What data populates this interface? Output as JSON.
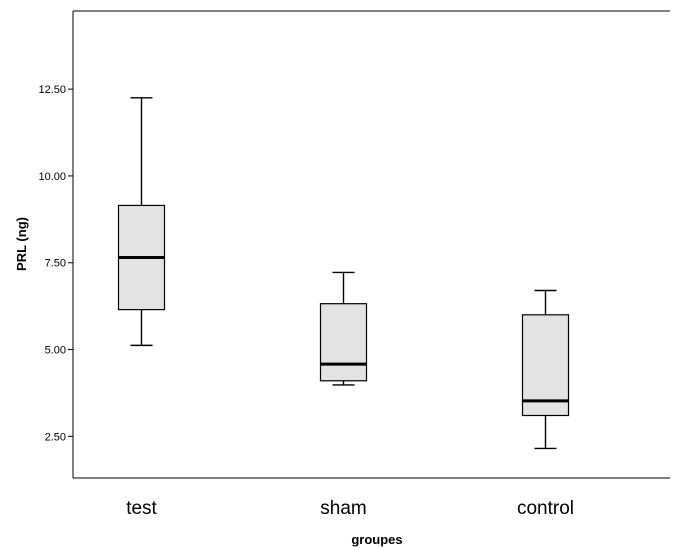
{
  "chart_data": {
    "type": "boxplot",
    "xlabel": "groupes",
    "ylabel": "PRL (ng)",
    "ylim": [
      1.3,
      14.75
    ],
    "y_ticks": [
      2.5,
      5.0,
      7.5,
      10.0,
      12.5
    ],
    "y_tick_labels": [
      "2.50",
      "5.00",
      "7.50",
      "10.00",
      "12.50"
    ],
    "categories": [
      "test",
      "sham",
      "control"
    ],
    "boxes": [
      {
        "category": "test",
        "min": 5.12,
        "q1": 6.15,
        "median": 7.65,
        "q3": 9.15,
        "max": 12.25
      },
      {
        "category": "sham",
        "min": 3.98,
        "q1": 4.1,
        "median": 4.58,
        "q3": 6.32,
        "max": 7.22
      },
      {
        "category": "control",
        "min": 2.15,
        "q1": 3.1,
        "median": 3.52,
        "q3": 6.0,
        "max": 6.7
      }
    ],
    "box_fill": "#e3e3e3",
    "line_color": "#000000",
    "grid": false
  }
}
